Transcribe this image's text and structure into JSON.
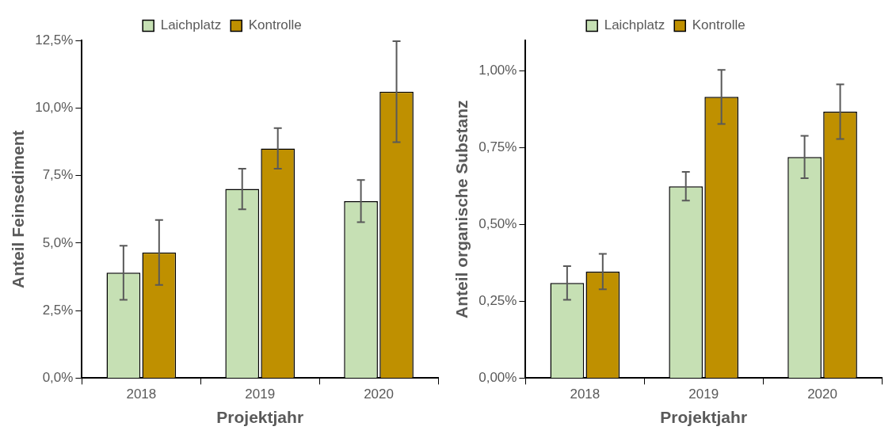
{
  "chart_data": [
    {
      "type": "bar",
      "xlabel": "Projektjahr",
      "ylabel": "Anteil Feinsediment",
      "categories": [
        "2018",
        "2019",
        "2020"
      ],
      "series": [
        {
          "name": "Laichplatz",
          "color": "#c6e0b4",
          "values": [
            3.9,
            7.0,
            6.55
          ],
          "errors": [
            1.0,
            0.75,
            0.78
          ]
        },
        {
          "name": "Kontrolle",
          "color": "#bf9000",
          "values": [
            4.65,
            8.5,
            10.6
          ],
          "errors": [
            1.2,
            0.75,
            1.87
          ]
        }
      ],
      "ylim": [
        0,
        12.5
      ],
      "yticks": [
        {
          "value": 0,
          "label": "0,0%"
        },
        {
          "value": 2.5,
          "label": "2,5%"
        },
        {
          "value": 5,
          "label": "5,0%"
        },
        {
          "value": 7.5,
          "label": "7,5%"
        },
        {
          "value": 10,
          "label": "10,0%"
        },
        {
          "value": 12.5,
          "label": "12,5%"
        }
      ],
      "grid": false,
      "legend": "top"
    },
    {
      "type": "bar",
      "xlabel": "Projektjahr",
      "ylabel": "Anteil organische Substanz",
      "categories": [
        "2018",
        "2019",
        "2020"
      ],
      "series": [
        {
          "name": "Laichplatz",
          "color": "#c6e0b4",
          "values": [
            0.31,
            0.625,
            0.72
          ],
          "errors": [
            0.055,
            0.047,
            0.069
          ]
        },
        {
          "name": "Kontrolle",
          "color": "#bf9000",
          "values": [
            0.347,
            0.916,
            0.868
          ],
          "errors": [
            0.058,
            0.088,
            0.089
          ]
        }
      ],
      "ylim": [
        0,
        1.1
      ],
      "yticks": [
        {
          "value": 0,
          "label": "0,00%"
        },
        {
          "value": 0.25,
          "label": "0,25%"
        },
        {
          "value": 0.5,
          "label": "0,50%"
        },
        {
          "value": 0.75,
          "label": "0,75%"
        },
        {
          "value": 1,
          "label": "1,00%"
        }
      ],
      "grid": false,
      "legend": "top"
    }
  ]
}
